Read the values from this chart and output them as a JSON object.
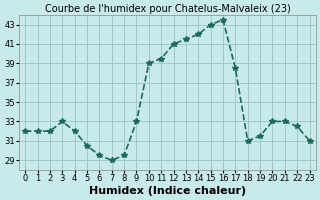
{
  "x": [
    0,
    1,
    2,
    3,
    4,
    5,
    6,
    7,
    8,
    9,
    10,
    11,
    12,
    13,
    14,
    15,
    16,
    17,
    18,
    19,
    20,
    21,
    22,
    23
  ],
  "y": [
    32,
    32,
    32,
    33,
    32,
    30.5,
    29.5,
    29,
    29.5,
    33,
    39,
    39.5,
    41,
    41.5,
    42,
    43,
    43.5,
    38.5,
    31,
    31.5,
    33,
    33,
    32.5,
    31
  ],
  "title": "Courbe de l'humidex pour Chatelus-Malvaleix (23)",
  "xlabel": "Humidex (Indice chaleur)",
  "ylabel": "",
  "line_color": "#1a6b5a",
  "marker": "*",
  "background_color": "#c8eaea",
  "grid_color": "#a0c8c8",
  "ylim": [
    28,
    44
  ],
  "yticks": [
    29,
    31,
    33,
    35,
    37,
    39,
    41,
    43
  ],
  "xticks": [
    0,
    1,
    2,
    3,
    4,
    5,
    6,
    7,
    8,
    9,
    10,
    11,
    12,
    13,
    14,
    15,
    16,
    17,
    18,
    19,
    20,
    21,
    22,
    23
  ],
  "xlim": [
    -0.5,
    23.5
  ],
  "tick_fontsize": 6,
  "xlabel_fontsize": 8,
  "title_fontsize": 7
}
